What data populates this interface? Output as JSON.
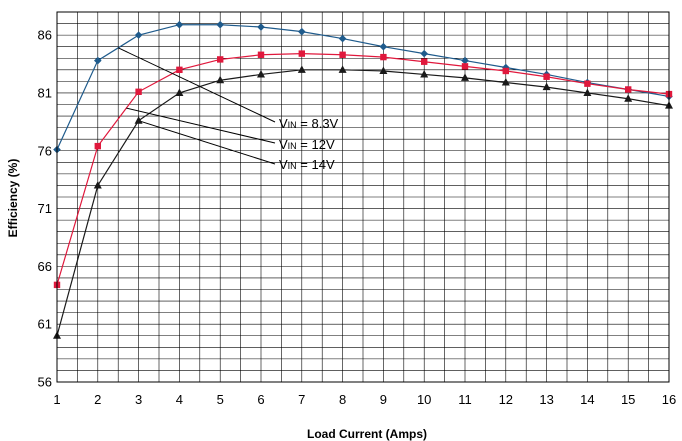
{
  "chart_data": {
    "type": "line",
    "xlabel": "Load Current (Amps)",
    "ylabel": "Efficiency (%)",
    "xlim": [
      1,
      16
    ],
    "ylim": [
      56,
      88
    ],
    "x_ticks": [
      1,
      2,
      3,
      4,
      5,
      6,
      7,
      8,
      9,
      10,
      11,
      12,
      13,
      14,
      15,
      16
    ],
    "y_ticks": [
      56,
      61,
      66,
      71,
      76,
      81,
      86
    ],
    "grid": true,
    "x": [
      1,
      2,
      3,
      4,
      5,
      6,
      7,
      8,
      9,
      10,
      11,
      12,
      13,
      14,
      15,
      16
    ],
    "series": [
      {
        "key": "vin_8_3",
        "marker": "diamond",
        "color": "#1f5b8c",
        "values": [
          76.1,
          83.8,
          86.0,
          86.9,
          86.9,
          86.7,
          86.3,
          85.7,
          85.0,
          84.4,
          83.8,
          83.2,
          82.6,
          81.9,
          81.3,
          80.7
        ]
      },
      {
        "key": "vin_12",
        "marker": "square",
        "color": "#e0183c",
        "values": [
          64.4,
          76.4,
          81.1,
          83.0,
          83.9,
          84.3,
          84.4,
          84.3,
          84.1,
          83.7,
          83.3,
          82.9,
          82.4,
          81.8,
          81.3,
          80.9
        ]
      },
      {
        "key": "vin_14",
        "marker": "triangle",
        "color": "#1a1a1a",
        "values": [
          60.0,
          73.0,
          78.6,
          81.0,
          82.1,
          82.6,
          83.0,
          83.0,
          82.9,
          82.6,
          82.3,
          81.9,
          81.5,
          81.0,
          80.5,
          79.9
        ]
      }
    ],
    "annotations": [
      {
        "label_main": "V",
        "label_sub": "IN",
        "label_rest": " = 8.3V",
        "series": "vin_8_3"
      },
      {
        "label_main": "V",
        "label_sub": "IN",
        "label_rest": " = 12V",
        "series": "vin_12"
      },
      {
        "label_main": "V",
        "label_sub": "IN",
        "label_rest": " = 14V",
        "series": "vin_14"
      }
    ]
  }
}
